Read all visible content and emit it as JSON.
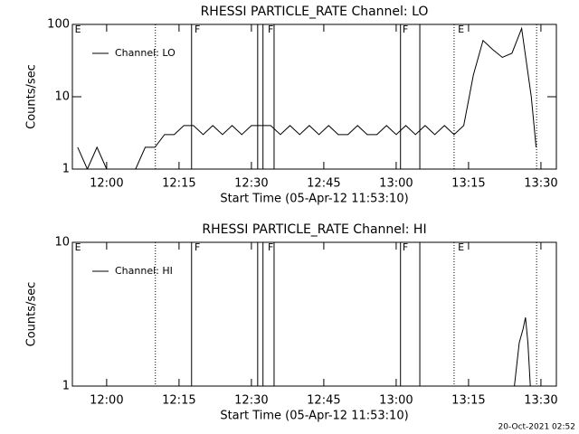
{
  "chart_data": [
    {
      "type": "line",
      "title": "RHESSI PARTICLE_RATE Channel: LO",
      "xlabel": "Start Time (05-Apr-12 11:53:10)",
      "ylabel": "Counts/sec",
      "log_y": true,
      "legend": "top-left",
      "xlim": [
        712.9,
        813.2
      ],
      "ylim": [
        1,
        100
      ],
      "xticks": [
        {
          "value": 720,
          "label": "12:00"
        },
        {
          "value": 735,
          "label": "12:15"
        },
        {
          "value": 750,
          "label": "12:30"
        },
        {
          "value": 765,
          "label": "12:45"
        },
        {
          "value": 780,
          "label": "13:00"
        },
        {
          "value": 795,
          "label": "13:15"
        },
        {
          "value": 810,
          "label": "13:30"
        }
      ],
      "yticks": [
        1,
        10,
        100
      ],
      "x": [
        714,
        716,
        718,
        720,
        722,
        724,
        726,
        728,
        730,
        732,
        734,
        736,
        738,
        740,
        742,
        744,
        746,
        748,
        750,
        752,
        754,
        756,
        758,
        760,
        762,
        764,
        766,
        768,
        770,
        772,
        774,
        776,
        778,
        780,
        782,
        784,
        786,
        788,
        790,
        792,
        794,
        796,
        798,
        800,
        802,
        804,
        806,
        808,
        809
      ],
      "series": [
        {
          "name": "Channel: LO",
          "color": "#000000",
          "values": [
            2,
            1,
            2,
            1,
            1,
            1,
            1,
            2,
            2,
            3,
            3,
            4,
            4,
            3,
            4,
            3,
            4,
            3,
            4,
            4,
            4,
            3,
            4,
            3,
            4,
            3,
            4,
            3,
            3,
            4,
            3,
            3,
            4,
            3,
            4,
            3,
            4,
            3,
            4,
            3,
            4,
            20,
            60,
            45,
            35,
            40,
            88,
            10,
            2
          ]
        }
      ],
      "markers": [
        {
          "x": 730.1,
          "style": "dotted"
        },
        {
          "x": 737.6,
          "style": "solid"
        },
        {
          "x": 751.3,
          "style": "solid"
        },
        {
          "x": 752.4,
          "style": "solid"
        },
        {
          "x": 754.7,
          "style": "solid"
        },
        {
          "x": 780.9,
          "style": "solid"
        },
        {
          "x": 784.9,
          "style": "solid"
        },
        {
          "x": 792.0,
          "style": "dotted"
        },
        {
          "x": 809.1,
          "style": "dotted"
        }
      ],
      "flag_labels": [
        {
          "x": 713.4,
          "text": "E"
        },
        {
          "x": 738.2,
          "text": "F"
        },
        {
          "x": 753.4,
          "text": "F"
        },
        {
          "x": 781.3,
          "text": "F"
        },
        {
          "x": 792.8,
          "text": "E"
        }
      ]
    },
    {
      "type": "line",
      "title": "RHESSI PARTICLE_RATE Channel: HI",
      "xlabel": "Start Time (05-Apr-12 11:53:10)",
      "ylabel": "Counts/sec",
      "log_y": true,
      "legend": "top-left",
      "xlim": [
        712.9,
        813.2
      ],
      "ylim": [
        1,
        10
      ],
      "xticks": [
        {
          "value": 720,
          "label": "12:00"
        },
        {
          "value": 735,
          "label": "12:15"
        },
        {
          "value": 750,
          "label": "12:30"
        },
        {
          "value": 765,
          "label": "12:45"
        },
        {
          "value": 780,
          "label": "13:00"
        },
        {
          "value": 795,
          "label": "13:15"
        },
        {
          "value": 810,
          "label": "13:30"
        }
      ],
      "yticks": [
        1,
        10
      ],
      "x": [
        804.5,
        805.5,
        806.3,
        806.8,
        807.3,
        807.8
      ],
      "series": [
        {
          "name": "Channel: HI",
          "color": "#000000",
          "values": [
            1,
            2,
            2.5,
            3,
            2,
            1
          ]
        }
      ],
      "markers": [
        {
          "x": 730.1,
          "style": "dotted"
        },
        {
          "x": 737.6,
          "style": "solid"
        },
        {
          "x": 751.3,
          "style": "solid"
        },
        {
          "x": 752.4,
          "style": "solid"
        },
        {
          "x": 754.7,
          "style": "solid"
        },
        {
          "x": 780.9,
          "style": "solid"
        },
        {
          "x": 784.9,
          "style": "solid"
        },
        {
          "x": 792.0,
          "style": "dotted"
        },
        {
          "x": 809.1,
          "style": "dotted"
        }
      ],
      "flag_labels": [
        {
          "x": 713.4,
          "text": "E"
        },
        {
          "x": 738.2,
          "text": "F"
        },
        {
          "x": 753.4,
          "text": "F"
        },
        {
          "x": 781.3,
          "text": "F"
        },
        {
          "x": 792.8,
          "text": "E"
        }
      ]
    }
  ],
  "footer": "20-Oct-2021 02:52"
}
